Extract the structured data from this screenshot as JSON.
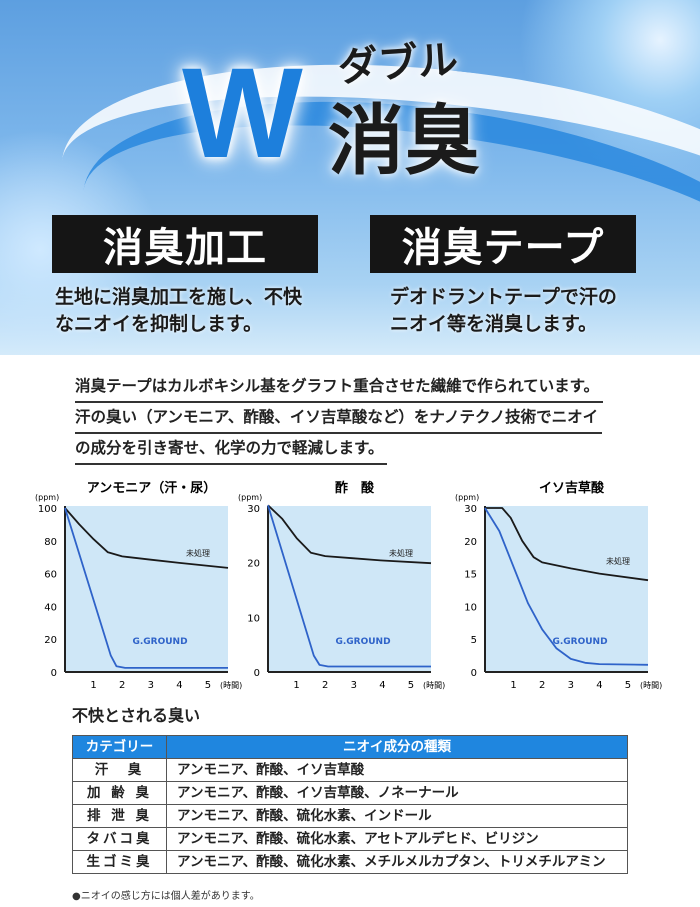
{
  "hero": {
    "w": "W",
    "reading": "ダブル",
    "title": "消臭",
    "features": [
      {
        "label": "消臭加工",
        "desc": [
          "生地に消臭加工を施し、不快",
          "なニオイを抑制します。"
        ]
      },
      {
        "label": "消臭テープ",
        "desc": [
          "デオドラントテープで汗の",
          "ニオイ等を消臭します。"
        ]
      }
    ]
  },
  "paragraph": [
    "消臭テープはカルボキシル基をグラフト重合させた繊維で作られています。",
    "汗の臭い（アンモニア、酢酸、イソ吉草酸など）をナノテクノ技術でニオイ",
    "の成分を引き寄せ、化学の力で軽減します。"
  ],
  "chart_data": [
    {
      "type": "line",
      "title": "アンモニア（汗・尿）",
      "ylabel": "(ppm)",
      "xlabel": "(時間)",
      "xlim": [
        0,
        5.7
      ],
      "xticks": [
        1,
        2,
        3,
        4,
        5
      ],
      "yticks": [
        0,
        20,
        40,
        60,
        80,
        100
      ],
      "series": [
        {
          "name": "未処理",
          "color": "#1a1a1a",
          "points": [
            [
              0,
              100
            ],
            [
              0.5,
              90
            ],
            [
              1,
              81
            ],
            [
              1.5,
              73
            ],
            [
              2,
              70.5
            ],
            [
              3,
              68.5
            ],
            [
              4,
              66.5
            ],
            [
              5.7,
              63.5
            ]
          ]
        },
        {
          "name": "G.GROUND",
          "color": "#2f63c9",
          "points": [
            [
              0,
              100
            ],
            [
              1.6,
              10
            ],
            [
              1.8,
              3.5
            ],
            [
              2.1,
              2.5
            ],
            [
              5.7,
              2.5
            ]
          ]
        }
      ]
    },
    {
      "type": "line",
      "title": "酢　酸",
      "ylabel": "(ppm)",
      "xlabel": "(時間)",
      "xlim": [
        0,
        5.7
      ],
      "xticks": [
        1,
        2,
        3,
        4,
        5
      ],
      "yticks": [
        0,
        10,
        20,
        30
      ],
      "series": [
        {
          "name": "未処理",
          "color": "#1a1a1a",
          "points": [
            [
              0,
              30.5
            ],
            [
              0.5,
              28
            ],
            [
              1,
              24.5
            ],
            [
              1.5,
              21.8
            ],
            [
              2,
              21.2
            ],
            [
              3,
              20.8
            ],
            [
              4,
              20.4
            ],
            [
              5.7,
              19.9
            ]
          ]
        },
        {
          "name": "G.GROUND",
          "color": "#2f63c9",
          "points": [
            [
              0,
              30.5
            ],
            [
              1.6,
              3
            ],
            [
              1.8,
              1.3
            ],
            [
              2.1,
              1
            ],
            [
              5.7,
              1
            ]
          ]
        }
      ]
    },
    {
      "type": "line",
      "title": "イソ吉草酸",
      "ylabel": "(ppm)",
      "xlabel": "(時間)",
      "xlim": [
        0,
        5.7
      ],
      "xticks": [
        1,
        2,
        3,
        4,
        5
      ],
      "yticks": [
        0,
        5,
        10,
        15,
        20,
        30
      ],
      "series": [
        {
          "name": "未処理",
          "color": "#1a1a1a",
          "points": [
            [
              0,
              30
            ],
            [
              0.6,
              30
            ],
            [
              0.9,
              27
            ],
            [
              1.3,
              20
            ],
            [
              1.7,
              17.5
            ],
            [
              2,
              16.7
            ],
            [
              3,
              15.8
            ],
            [
              4,
              15
            ],
            [
              5.7,
              14
            ]
          ]
        },
        {
          "name": "G.GROUND",
          "color": "#2f63c9",
          "points": [
            [
              0,
              30
            ],
            [
              0.5,
              23
            ],
            [
              1,
              16
            ],
            [
              1.5,
              10.5
            ],
            [
              2,
              6.5
            ],
            [
              2.5,
              3.6
            ],
            [
              3,
              2
            ],
            [
              3.5,
              1.4
            ],
            [
              4,
              1.2
            ],
            [
              5.7,
              1.1
            ]
          ]
        }
      ]
    }
  ],
  "table": {
    "title": "不快とされる臭い",
    "headers": [
      "カテゴリー",
      "ニオイ成分の種類"
    ],
    "rows": [
      [
        "汗　臭",
        "アンモニア、酢酸、イソ吉草酸"
      ],
      [
        "加 齢 臭",
        "アンモニア、酢酸、イソ吉草酸、ノネーナール"
      ],
      [
        "排 泄 臭",
        "アンモニア、酢酸、硫化水素、インドール"
      ],
      [
        "タバコ臭",
        "アンモニア、酢酸、硫化水素、アセトアルデヒド、ビリジン"
      ],
      [
        "生ゴミ臭",
        "アンモニア、酢酸、硫化水素、メチルメルカプタン、トリメチルアミン"
      ]
    ],
    "footnote": "●ニオイの感じ方には個人差があります。"
  }
}
